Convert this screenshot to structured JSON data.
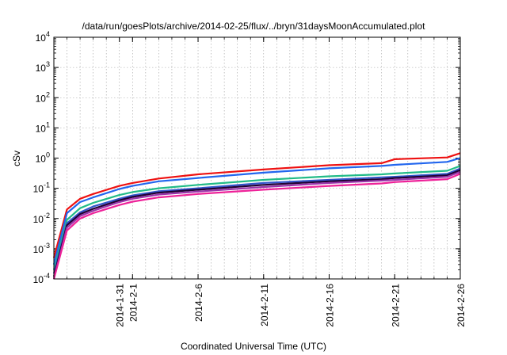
{
  "chart_data": {
    "type": "line",
    "title": "/data/run/goesPlots/archive/2014-02-25/flux/../bryn/31daysMoonAccumulated.plot",
    "xlabel": "Coordinated Universal Time (UTC)",
    "ylabel": "cSv",
    "yscale": "log",
    "ylim": [
      0.0001,
      10000
    ],
    "xlim": [
      "2014-01-26",
      "2014-02-26"
    ],
    "grid": true,
    "y_tick_labels": [
      {
        "base": "10",
        "exp": "-4",
        "value": 0.0001
      },
      {
        "base": "10",
        "exp": "-3",
        "value": 0.001
      },
      {
        "base": "10",
        "exp": "-2",
        "value": 0.01
      },
      {
        "base": "10",
        "exp": "-1",
        "value": 0.1
      },
      {
        "base": "10",
        "exp": "0",
        "value": 1
      },
      {
        "base": "10",
        "exp": "1",
        "value": 10
      },
      {
        "base": "10",
        "exp": "2",
        "value": 100
      },
      {
        "base": "10",
        "exp": "3",
        "value": 1000
      },
      {
        "base": "10",
        "exp": "4",
        "value": 10000
      }
    ],
    "x_tick_labels": [
      {
        "date": "2014-01-31",
        "label": "2014-1-31"
      },
      {
        "date": "2014-02-01",
        "label": "2014-2-1"
      },
      {
        "date": "2014-02-06",
        "label": "2014-2-6"
      },
      {
        "date": "2014-02-11",
        "label": "2014-2-11"
      },
      {
        "date": "2014-02-16",
        "label": "2014-2-16"
      },
      {
        "date": "2014-02-21",
        "label": "2014-2-21"
      },
      {
        "date": "2014-02-26",
        "label": "2014-2-26"
      }
    ],
    "x": [
      "2014-01-26",
      "2014-01-27",
      "2014-01-28",
      "2014-01-29",
      "2014-01-31",
      "2014-02-01",
      "2014-02-03",
      "2014-02-06",
      "2014-02-11",
      "2014-02-16",
      "2014-02-20",
      "2014-02-21",
      "2014-02-25",
      "2014-02-26"
    ],
    "series": [
      {
        "color": "#ee1111",
        "values": [
          0.0005,
          0.02,
          0.045,
          0.065,
          0.12,
          0.15,
          0.21,
          0.29,
          0.42,
          0.58,
          0.68,
          0.92,
          1.05,
          1.45
        ]
      },
      {
        "color": "#2266ee",
        "values": [
          0.0003,
          0.015,
          0.035,
          0.05,
          0.095,
          0.12,
          0.17,
          0.22,
          0.33,
          0.46,
          0.55,
          0.6,
          0.75,
          1.0
        ]
      },
      {
        "color": "#22bb88",
        "values": [
          0.0002,
          0.009,
          0.022,
          0.033,
          0.06,
          0.075,
          0.1,
          0.13,
          0.19,
          0.25,
          0.29,
          0.31,
          0.38,
          0.55
        ]
      },
      {
        "color": "#3355cc",
        "values": [
          0.00015,
          0.007,
          0.016,
          0.025,
          0.045,
          0.058,
          0.08,
          0.1,
          0.15,
          0.19,
          0.23,
          0.24,
          0.3,
          0.45
        ]
      },
      {
        "color": "#220033",
        "values": [
          0.00012,
          0.006,
          0.014,
          0.021,
          0.04,
          0.052,
          0.072,
          0.09,
          0.13,
          0.17,
          0.2,
          0.22,
          0.27,
          0.4
        ]
      },
      {
        "color": "#9933aa",
        "values": [
          0.0001,
          0.005,
          0.012,
          0.018,
          0.035,
          0.045,
          0.062,
          0.078,
          0.11,
          0.15,
          0.18,
          0.19,
          0.24,
          0.35
        ]
      },
      {
        "color": "#ee2299",
        "values": [
          0.0001,
          0.004,
          0.01,
          0.015,
          0.028,
          0.036,
          0.05,
          0.065,
          0.09,
          0.12,
          0.145,
          0.16,
          0.2,
          0.3
        ]
      }
    ]
  }
}
